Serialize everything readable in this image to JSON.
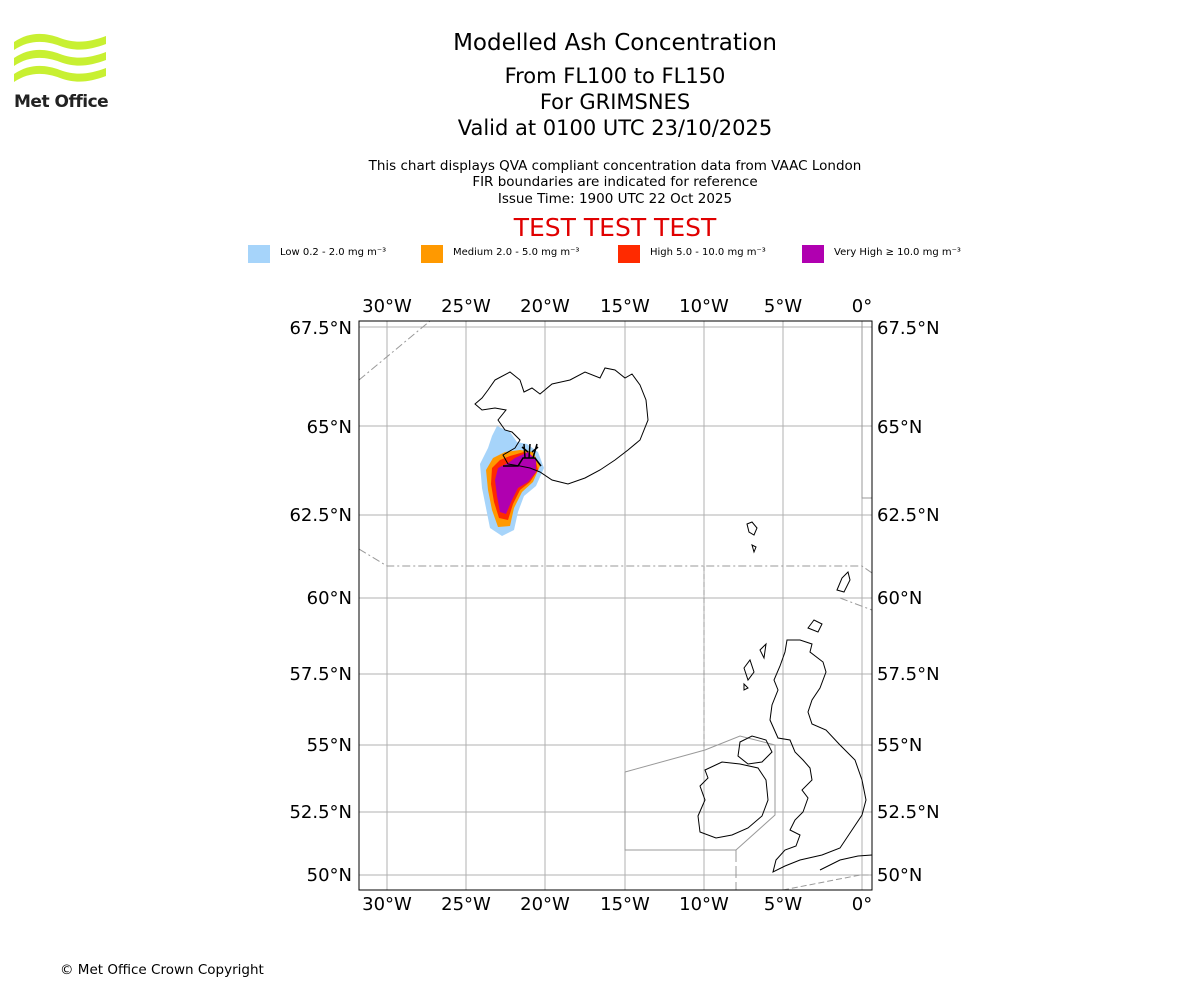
{
  "header": {
    "logo_text": "Met Office",
    "title": "Modelled Ash Concentration",
    "level_range": "From FL100 to FL150",
    "volcano": "For GRIMSNES",
    "valid_time": "Valid at 0100 UTC 23/10/2025",
    "info_line1": "This chart displays QVA compliant concentration data from VAAC London",
    "info_line2": "FIR boundaries are indicated for reference",
    "issue_time": "Issue Time: 1900 UTC 22 Oct 2025",
    "test_banner": "TEST TEST TEST"
  },
  "legend": [
    {
      "label": "Low 0.2 - 2.0 mg m⁻³",
      "color": "#a6d4fa"
    },
    {
      "label": "Medium 2.0 - 5.0 mg m⁻³",
      "color": "#ff9900"
    },
    {
      "label": "High 5.0 - 10.0 mg m⁻³",
      "color": "#ff2a00"
    },
    {
      "label": "Very High  ≥  10.0 mg m⁻³",
      "color": "#b000b0"
    }
  ],
  "map": {
    "lon_ticks": [
      "30°W",
      "25°W",
      "20°W",
      "15°W",
      "10°W",
      "5°W",
      "0°"
    ],
    "lat_ticks": [
      "67.5°N",
      "65°N",
      "62.5°N",
      "60°N",
      "57.5°N",
      "55°N",
      "52.5°N",
      "50°N"
    ],
    "volcano_name": "Grimsnes"
  },
  "footer": {
    "copyright": "© Met Office Crown Copyright"
  }
}
